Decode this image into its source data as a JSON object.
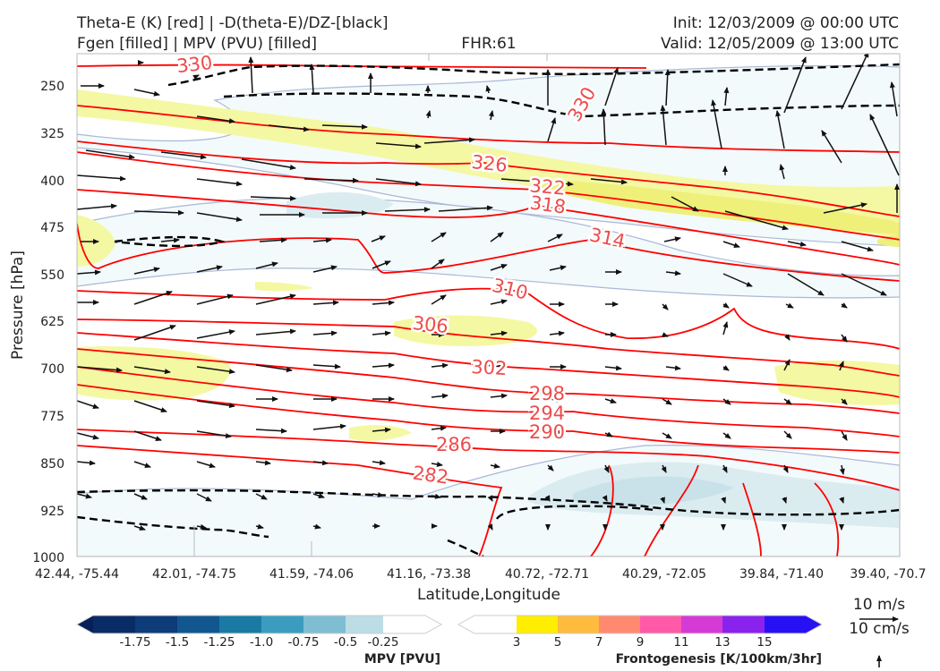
{
  "header": {
    "left_line1": "Theta-E (K) [red] | -D(theta-E)/DZ-[black]",
    "left_line2": "Fgen [filled] | MPV (PVU) [filled]",
    "center_line2": "FHR:61",
    "right_line1": "Init: 12/03/2009 @ 00:00 UTC",
    "right_line2": "Valid: 12/05/2009 @ 13:00 UTC"
  },
  "chart_data": {
    "type": "cross-section",
    "xlabel": "Latitude,Longitude",
    "ylabel": "Pressure [hPa]",
    "x_ticks": [
      "42.44, -75.44",
      "42.01, -74.75",
      "41.59, -74.06",
      "41.16, -73.38",
      "40.72, -72.71",
      "40.29, -72.05",
      "39.84, -71.40",
      "39.40, -70.7"
    ],
    "y_ticks": [
      "250",
      "325",
      "400",
      "475",
      "550",
      "625",
      "700",
      "775",
      "850",
      "925",
      "1000"
    ],
    "ylim": [
      1000,
      200
    ],
    "y_inverted": true,
    "theta_e_labels": [
      "330",
      "330",
      "326",
      "322",
      "318",
      "314",
      "310",
      "306",
      "302",
      "298",
      "294",
      "290",
      "286",
      "282"
    ],
    "theta_e_color": "#ff0000",
    "stability_color": "#000000",
    "mpv_colorbar": {
      "title": "MPV [PVU]",
      "labels": [
        "-1.75",
        "-1.5",
        "-1.25",
        "-1.0",
        "-0.75",
        "-0.5",
        "-0.25"
      ],
      "colors": [
        "#08205a",
        "#0d3c78",
        "#12568f",
        "#1b7aa3",
        "#3c9cbf",
        "#7fbdd3",
        "#bcdde6",
        "#ffffff"
      ]
    },
    "fgen_colorbar": {
      "title": "Frontogenesis [K/100km/3hr]",
      "labels": [
        "3",
        "5",
        "7",
        "9",
        "11",
        "13",
        "15"
      ],
      "colors": [
        "#ffffff",
        "#ffee00",
        "#ffbb3d",
        "#ff8a70",
        "#ff59a8",
        "#d63ad6",
        "#8a22ee",
        "#2810f5"
      ]
    },
    "wind_reference": {
      "label_top": "10 m/s",
      "label_bottom": "10 cm/s"
    },
    "grid": true
  }
}
